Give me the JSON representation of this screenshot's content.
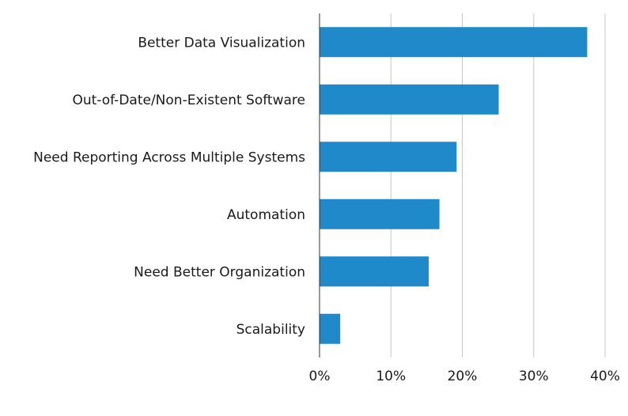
{
  "chart_data": {
    "type": "bar",
    "orientation": "horizontal",
    "title": "",
    "xlabel": "",
    "ylabel": "",
    "categories": [
      "Better Data Visualization",
      "Out-of-Date/Non-Existent Software",
      "Need Reporting Across Multiple Systems",
      "Automation",
      "Need Better Organization",
      "Scalability"
    ],
    "values": [
      37.5,
      25.1,
      19.2,
      16.8,
      15.3,
      2.9
    ],
    "xlim": [
      0,
      40
    ],
    "xticks": [
      0,
      10,
      20,
      30,
      40
    ],
    "xtick_labels": [
      "0%",
      "10%",
      "20%",
      "30%",
      "40%"
    ],
    "grid": "vertical",
    "bar_color": "#2089c9",
    "grid_color": "#c8c8c8",
    "axis_color": "#333333"
  }
}
